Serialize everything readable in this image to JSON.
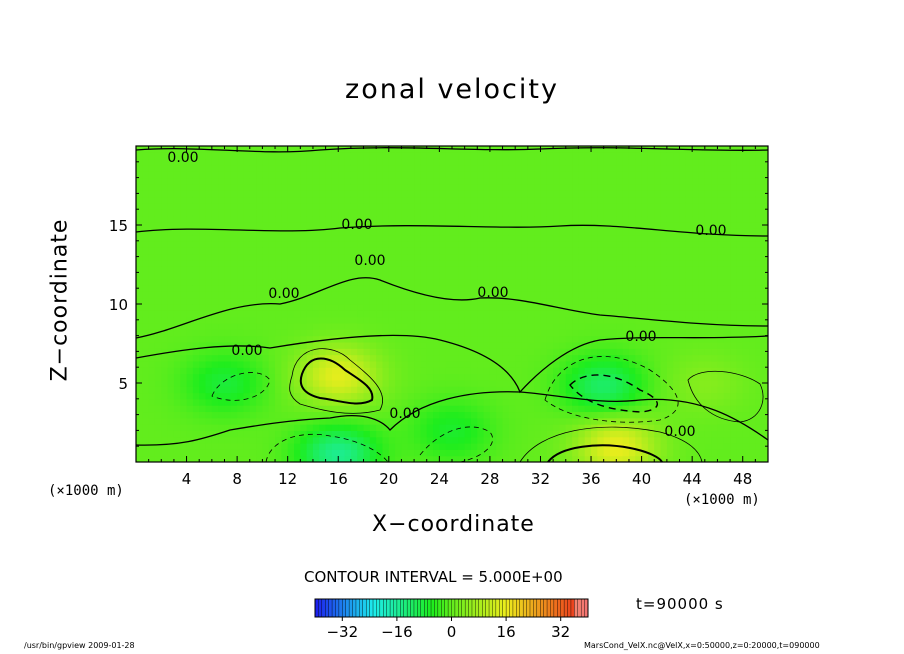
{
  "chart_data": {
    "type": "heatmap",
    "title": "zonal velocity",
    "xlabel": "X−coordinate",
    "ylabel": "Z−coordinate",
    "x_unit": "(×1000 m)",
    "x_range": [
      0,
      50
    ],
    "y_range": [
      0,
      20
    ],
    "x_ticks": [
      4,
      8,
      12,
      16,
      20,
      24,
      28,
      32,
      36,
      40,
      44,
      48
    ],
    "y_ticks": [
      5,
      10,
      15
    ],
    "contour_interval": "CONTOUR INTERVAL = 5.000E+00",
    "contour_labels": [
      "0.00",
      "0.00",
      "0.00",
      "0.00",
      "0.00",
      "0.00",
      "0.00",
      "0.00",
      "0.00",
      "0.00"
    ],
    "colorbar": {
      "min": -40,
      "max": 40,
      "ticks": [
        -32,
        -16,
        0,
        16,
        32
      ],
      "tick_labels": [
        "−32",
        "−16",
        "0",
        "16",
        "32"
      ]
    },
    "features": [
      {
        "x": 16,
        "z": 5.5,
        "value": 15
      },
      {
        "x": 38,
        "z": 1,
        "value": 16
      },
      {
        "x": 16,
        "z": 0.5,
        "value": -15
      },
      {
        "x": 37,
        "z": 4.8,
        "value": -12
      },
      {
        "x": 7,
        "z": 5,
        "value": -8
      },
      {
        "x": 25,
        "z": 2,
        "value": -7
      },
      {
        "x": 45,
        "z": 5,
        "value": 4
      }
    ],
    "background_value": 0,
    "grid": false
  },
  "time_label": "t=90000  s",
  "footer_left": "/usr/bin/gpview   2009-01-28",
  "footer_right": "MarsCond_VelX.nc@VelX,x=0:50000,z=0:20000,t=090000"
}
